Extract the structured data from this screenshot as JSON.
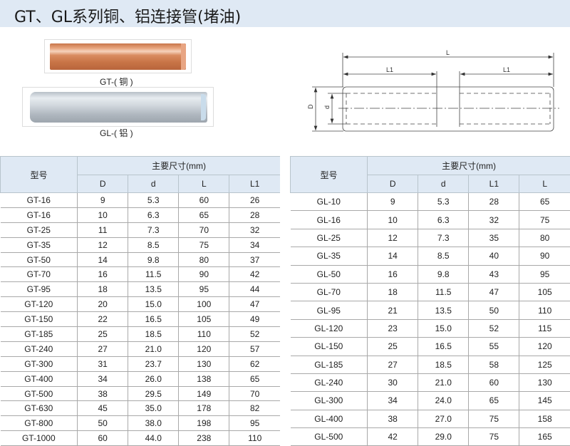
{
  "title": "GT、GL系列铜、铝连接管(堵油)",
  "products": [
    {
      "caption": "GT-( 铜 )",
      "color": "#d98c60"
    },
    {
      "caption": "GL-( 铝 )",
      "color": "#c4ccd4"
    }
  ],
  "diagram": {
    "L": "L",
    "L1_left": "L1",
    "L1_right": "L1",
    "D": "D",
    "d": "d"
  },
  "header_color": "#dfe9f4",
  "gt_table": {
    "model_header": "型号",
    "group_header": "主要尺寸(mm)",
    "columns": [
      "D",
      "d",
      "L",
      "L1"
    ],
    "rows": [
      [
        "GT-16",
        "9",
        "5.3",
        "60",
        "26"
      ],
      [
        "GT-16",
        "10",
        "6.3",
        "65",
        "28"
      ],
      [
        "GT-25",
        "11",
        "7.3",
        "70",
        "32"
      ],
      [
        "GT-35",
        "12",
        "8.5",
        "75",
        "34"
      ],
      [
        "GT-50",
        "14",
        "9.8",
        "80",
        "37"
      ],
      [
        "GT-70",
        "16",
        "11.5",
        "90",
        "42"
      ],
      [
        "GT-95",
        "18",
        "13.5",
        "95",
        "44"
      ],
      [
        "GT-120",
        "20",
        "15.0",
        "100",
        "47"
      ],
      [
        "GT-150",
        "22",
        "16.5",
        "105",
        "49"
      ],
      [
        "GT-185",
        "25",
        "18.5",
        "110",
        "52"
      ],
      [
        "GT-240",
        "27",
        "21.0",
        "120",
        "57"
      ],
      [
        "GT-300",
        "31",
        "23.7",
        "130",
        "62"
      ],
      [
        "GT-400",
        "34",
        "26.0",
        "138",
        "65"
      ],
      [
        "GT-500",
        "38",
        "29.5",
        "149",
        "70"
      ],
      [
        "GT-630",
        "45",
        "35.0",
        "178",
        "82"
      ],
      [
        "GT-800",
        "50",
        "38.0",
        "198",
        "95"
      ],
      [
        "GT-1000",
        "60",
        "44.0",
        "238",
        "110"
      ]
    ]
  },
  "gl_table": {
    "model_header": "型号",
    "group_header": "主要尺寸(mm)",
    "columns": [
      "D",
      "d",
      "L1",
      "L"
    ],
    "rows": [
      [
        "GL-10",
        "9",
        "5.3",
        "28",
        "65"
      ],
      [
        "GL-16",
        "10",
        "6.3",
        "32",
        "75"
      ],
      [
        "GL-25",
        "12",
        "7.3",
        "35",
        "80"
      ],
      [
        "GL-35",
        "14",
        "8.5",
        "40",
        "90"
      ],
      [
        "GL-50",
        "16",
        "9.8",
        "43",
        "95"
      ],
      [
        "GL-70",
        "18",
        "11.5",
        "47",
        "105"
      ],
      [
        "GL-95",
        "21",
        "13.5",
        "50",
        "110"
      ],
      [
        "GL-120",
        "23",
        "15.0",
        "52",
        "115"
      ],
      [
        "GL-150",
        "25",
        "16.5",
        "55",
        "120"
      ],
      [
        "GL-185",
        "27",
        "18.5",
        "58",
        "125"
      ],
      [
        "GL-240",
        "30",
        "21.0",
        "60",
        "130"
      ],
      [
        "GL-300",
        "34",
        "24.0",
        "65",
        "145"
      ],
      [
        "GL-400",
        "38",
        "27.0",
        "75",
        "158"
      ],
      [
        "GL-500",
        "42",
        "29.0",
        "75",
        "165"
      ]
    ]
  }
}
